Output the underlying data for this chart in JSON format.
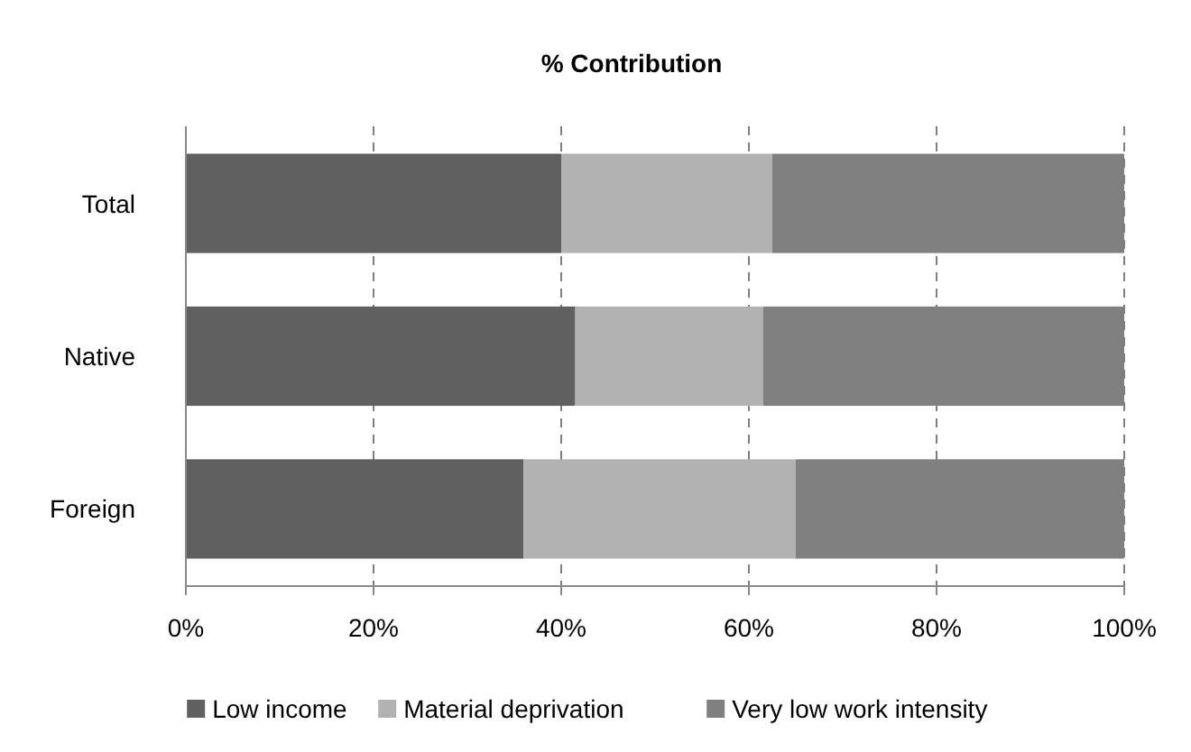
{
  "chart_data": {
    "type": "bar",
    "title": "% Contribution",
    "orientation": "horizontal",
    "stacked": true,
    "categories": [
      "Total",
      "Native",
      "Foreign"
    ],
    "series": [
      {
        "name": "Low income",
        "color": "#606060",
        "values": [
          40,
          41.5,
          36
        ]
      },
      {
        "name": "Material deprivation",
        "color": "#b2b2b2",
        "values": [
          22.5,
          20,
          29
        ]
      },
      {
        "name": "Very low work intensity",
        "color": "#808080",
        "values": [
          37.5,
          38.5,
          35
        ]
      }
    ],
    "xlim": [
      0,
      100
    ],
    "xticks": [
      {
        "value": 0,
        "label": "0%"
      },
      {
        "value": 20,
        "label": "20%"
      },
      {
        "value": 40,
        "label": "40%"
      },
      {
        "value": 60,
        "label": "60%"
      },
      {
        "value": 80,
        "label": "80%"
      },
      {
        "value": 100,
        "label": "100%"
      }
    ],
    "grid": "x",
    "legend": "bottom"
  }
}
